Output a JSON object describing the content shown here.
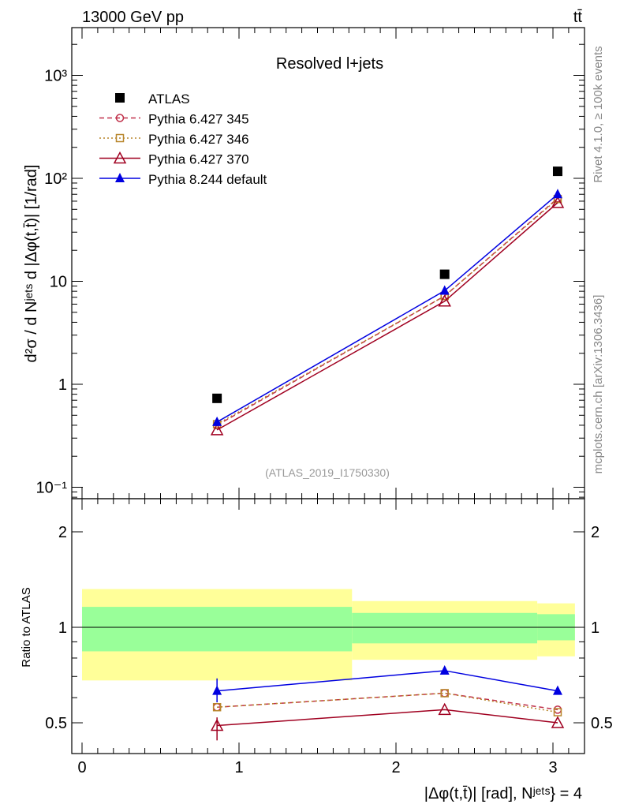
{
  "chart_data": [
    {
      "type": "line",
      "header_left": "13000 GeV pp",
      "header_right": "tt̄",
      "title": "Resolved l+jets",
      "ylabel": "d²σ / d Nʲᵉᵗˢ d |Δφ(t,t̄)| [1/rad]",
      "yscale": "log",
      "ylim": [
        0.07,
        2500
      ],
      "ytick_values": [
        0.1,
        1,
        10,
        100,
        1000
      ],
      "ytick_labels": [
        "10⁻¹",
        "1",
        "10",
        "10²",
        "10³"
      ],
      "watermark": "(ATLAS_2019_I1750330)",
      "side_text_top": "Rivet 4.1.0, ≥ 100k events",
      "side_text_bottom": "mcplots.cern.ch [arXiv:1306.3436]",
      "legend_placement": "top-left",
      "x": [
        0.86,
        2.31,
        3.03
      ],
      "series": [
        {
          "name": "ATLAS",
          "values": [
            0.73,
            11.7,
            117
          ],
          "color": "#000000",
          "marker": "square-filled",
          "line": "none"
        },
        {
          "name": "Pythia 6.427 345",
          "values": [
            0.4,
            7.2,
            64
          ],
          "color": "#c0304a",
          "marker": "circle-open",
          "line": "dashed"
        },
        {
          "name": "Pythia 6.427 346",
          "values": [
            0.41,
            7.2,
            63
          ],
          "color": "#b8862b",
          "marker": "square-open",
          "line": "dotted"
        },
        {
          "name": "Pythia 6.427 370",
          "values": [
            0.36,
            6.4,
            58
          ],
          "color": "#a00020",
          "marker": "triangle-open",
          "line": "solid"
        },
        {
          "name": "Pythia 8.244 default",
          "values": [
            0.43,
            8.1,
            70
          ],
          "color": "#0000e0",
          "marker": "triangle-filled",
          "line": "solid"
        }
      ]
    },
    {
      "type": "line",
      "ylabel": "Ratio to ATLAS",
      "yscale": "log",
      "ylim": [
        0.4,
        2.4
      ],
      "ytick_values": [
        0.5,
        1,
        2
      ],
      "ytick_labels": [
        "0.5",
        "1",
        "2"
      ],
      "xlabel": "|Δφ(t,t̄)| [rad], Nʲᵉᵗˢ} = 4",
      "xlim": [
        -0.07,
        3.2
      ],
      "xtick_values": [
        0,
        1,
        2,
        3
      ],
      "xtick_labels": [
        "0",
        "1",
        "2",
        "3"
      ],
      "bands": {
        "bin_edges": [
          0,
          1.72,
          2.9,
          3.14
        ],
        "yellow_low": [
          0.68,
          0.79,
          0.81
        ],
        "yellow_high": [
          1.32,
          1.21,
          1.19
        ],
        "green_low": [
          0.84,
          0.89,
          0.91
        ],
        "green_high": [
          1.16,
          1.11,
          1.1
        ],
        "yellow_color": "#ffff99",
        "green_color": "#99ff99"
      },
      "x": [
        0.86,
        2.31,
        3.03
      ],
      "series": [
        {
          "name": "Pythia 6.427 345",
          "values": [
            0.56,
            0.62,
            0.55
          ]
        },
        {
          "name": "Pythia 6.427 346",
          "values": [
            0.56,
            0.62,
            0.54
          ]
        },
        {
          "name": "Pythia 6.427 370",
          "values": [
            0.49,
            0.55,
            0.5
          ]
        },
        {
          "name": "Pythia 8.244 default",
          "values": [
            0.63,
            0.73,
            0.63
          ]
        }
      ]
    }
  ]
}
